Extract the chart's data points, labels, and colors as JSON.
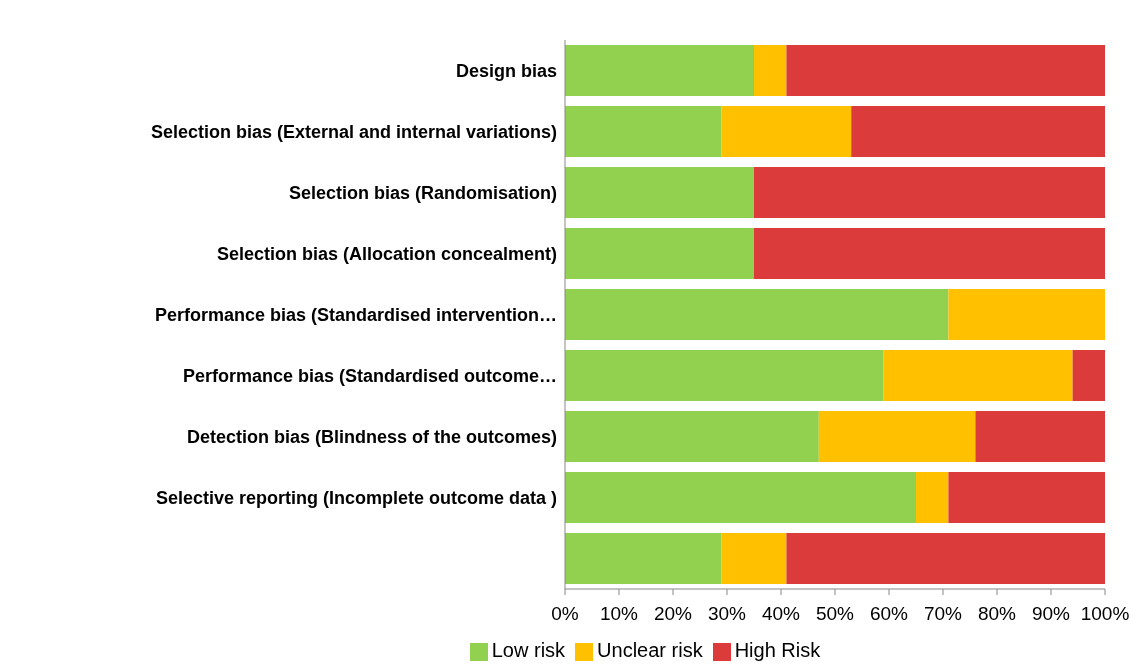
{
  "chart_data": {
    "type": "bar",
    "orientation": "horizontal",
    "stacked": true,
    "categories": [
      "Design bias",
      "Selection bias (External and internal variations) ",
      "Selection bias (Randomisation)",
      "Selection bias (Allocation concealment)",
      "Performance bias (Standardised intervention…",
      "Performance bias (Standardised outcome…",
      "Detection bias (Blindness of the outcomes)",
      "Selective reporting (Incomplete outcome data )",
      null
    ],
    "series": [
      {
        "name": "Low risk",
        "color": "#92d050",
        "values": [
          35,
          29,
          35,
          35,
          71,
          59,
          47,
          65,
          29
        ]
      },
      {
        "name": "Unclear risk",
        "color": "#ffc000",
        "values": [
          6,
          24,
          0,
          0,
          29,
          35,
          29,
          6,
          12
        ]
      },
      {
        "name": "High Risk",
        "color": "#dc3b3b",
        "values": [
          59,
          47,
          65,
          65,
          0,
          6,
          24,
          29,
          59
        ]
      }
    ],
    "xlim": [
      0,
      100
    ],
    "xticks": [
      {
        "value": 0,
        "label": "0%"
      },
      {
        "value": 10,
        "label": "10%"
      },
      {
        "value": 20,
        "label": "20%"
      },
      {
        "value": 30,
        "label": "30%"
      },
      {
        "value": 40,
        "label": "40%"
      },
      {
        "value": 50,
        "label": "50%"
      },
      {
        "value": 60,
        "label": "60%"
      },
      {
        "value": 70,
        "label": "70%"
      },
      {
        "value": 80,
        "label": "80%"
      },
      {
        "value": 90,
        "label": "90%"
      },
      {
        "value": 100,
        "label": "100%"
      }
    ],
    "grid": false,
    "legend": "bottom"
  }
}
